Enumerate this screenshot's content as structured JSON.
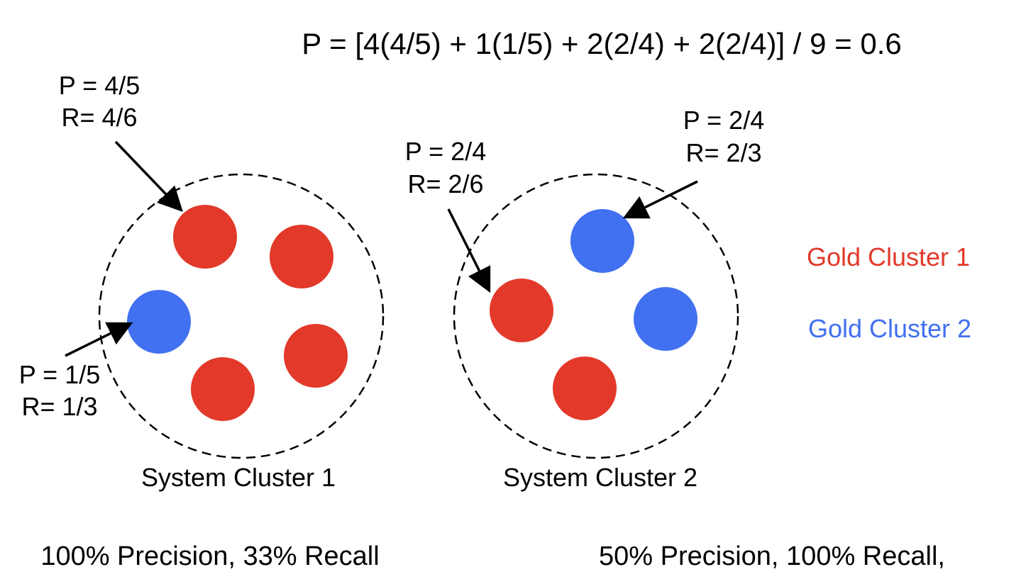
{
  "formula": "P = [4(4/5) + 1(1/5) + 2(2/4) + 2(2/4)] / 9 = 0.6",
  "legend": [
    {
      "label": "Gold Cluster 1",
      "color": "#E2392A"
    },
    {
      "label": "Gold Cluster 2",
      "color": "#4170F0"
    }
  ],
  "colors": {
    "gold1": "#E2392A",
    "gold2": "#4170F0",
    "ink": "#000000"
  },
  "system_clusters": [
    {
      "name": "System Cluster 1",
      "items": [
        "gold1",
        "gold1",
        "gold2",
        "gold1",
        "gold1"
      ],
      "annotations": [
        {
          "p": "P = 4/5",
          "r": "R= 4/6"
        },
        {
          "p": "P = 1/5",
          "r": "R= 1/3"
        }
      ]
    },
    {
      "name": "System Cluster 2",
      "items": [
        "gold2",
        "gold1",
        "gold2",
        "gold1"
      ],
      "annotations": [
        {
          "p": "P = 2/4",
          "r": "R= 2/6"
        },
        {
          "p": "P = 2/4",
          "r": "R= 2/3"
        }
      ]
    }
  ],
  "footer": {
    "left": "100% Precision, 33% Recall",
    "right": "50% Precision, 100% Recall,"
  }
}
